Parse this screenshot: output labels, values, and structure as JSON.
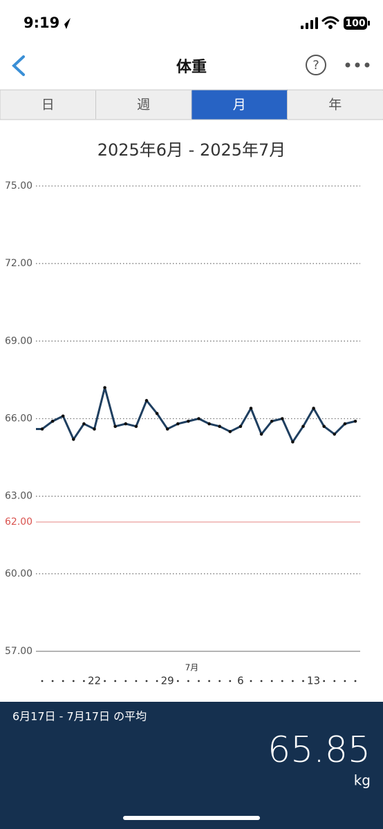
{
  "status_bar": {
    "time": "9:19",
    "battery": "100"
  },
  "nav": {
    "title": "体重"
  },
  "tabs": {
    "items": [
      "日",
      "週",
      "月",
      "年"
    ],
    "selected": 2
  },
  "chart_data": {
    "type": "line",
    "title": "2025年6月 - 2025年7月",
    "categories": [
      null,
      null,
      null,
      null,
      null,
      "22",
      null,
      null,
      null,
      null,
      null,
      null,
      "29",
      null,
      null,
      null,
      null,
      null,
      null,
      "6",
      null,
      null,
      null,
      null,
      null,
      null,
      "13",
      null,
      null,
      null,
      null
    ],
    "month_label": "7月",
    "values": [
      65.6,
      65.9,
      66.1,
      65.2,
      65.8,
      65.6,
      67.2,
      65.7,
      65.8,
      65.7,
      66.7,
      66.2,
      65.6,
      65.8,
      65.9,
      66.0,
      65.8,
      65.7,
      65.5,
      65.7,
      66.4,
      65.4,
      65.9,
      66.0,
      65.1,
      65.7,
      66.4,
      65.7,
      65.4,
      65.8,
      65.9
    ],
    "color": "#1f3f60",
    "ylim": [
      57,
      75
    ],
    "yticks": [
      {
        "value": 57,
        "label": "57.00"
      },
      {
        "value": 60,
        "label": "60.00"
      },
      {
        "value": 63,
        "label": "63.00"
      },
      {
        "value": 66,
        "label": "66.00"
      },
      {
        "value": 69,
        "label": "69.00"
      },
      {
        "value": 72,
        "label": "72.00"
      },
      {
        "value": 75,
        "label": "75.00"
      }
    ],
    "target": {
      "value": 62,
      "label": "62.00",
      "color": "#d9534f"
    },
    "grid": true
  },
  "summary": {
    "label": "6月17日 - 7月17日 の平均",
    "value": "65.85",
    "unit": "kg"
  }
}
